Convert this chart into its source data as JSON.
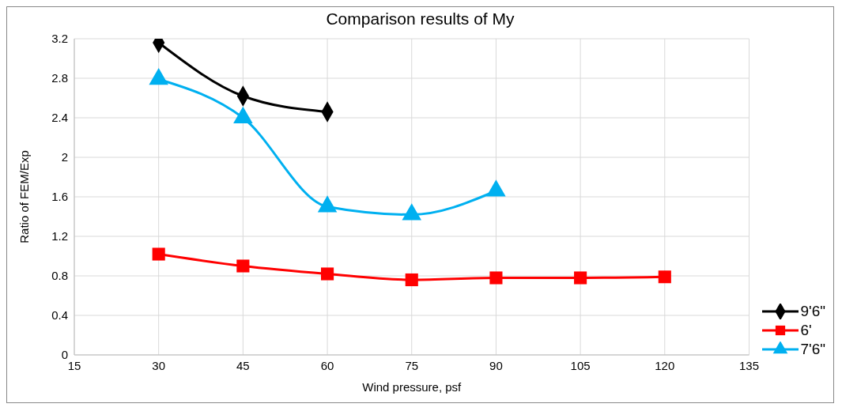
{
  "chart_data": {
    "type": "line",
    "title": "Comparison results of My",
    "xlabel": "Wind pressure, psf",
    "ylabel": "Ratio of FEM/Exp",
    "x": [
      30,
      45,
      60,
      75,
      90,
      105,
      120
    ],
    "series": [
      {
        "name": "9'6\"",
        "color": "#000000",
        "marker": "diamond",
        "values": [
          3.16,
          2.62,
          2.46,
          null,
          null,
          null,
          null
        ]
      },
      {
        "name": "6'",
        "color": "#ff0000",
        "marker": "square",
        "values": [
          1.02,
          0.9,
          0.82,
          0.76,
          0.78,
          0.78,
          0.79
        ]
      },
      {
        "name": "7'6\"",
        "color": "#00b0f0",
        "marker": "triangle",
        "values": [
          2.79,
          2.4,
          1.5,
          1.42,
          1.66,
          null,
          null
        ]
      }
    ],
    "xlim": [
      15,
      135
    ],
    "xticks": [
      15,
      30,
      45,
      60,
      75,
      90,
      105,
      120,
      135
    ],
    "ylim": [
      0,
      3.2
    ],
    "yticks": [
      0,
      0.4,
      0.8,
      1.2,
      1.6,
      2,
      2.4,
      2.8,
      3.2
    ],
    "grid": true,
    "legend": "bottom right",
    "line_style": "solid"
  }
}
